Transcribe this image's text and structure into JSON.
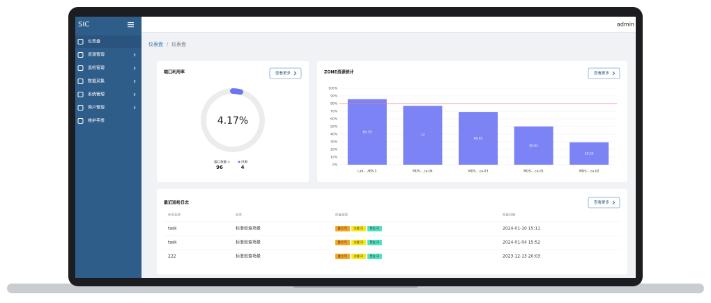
{
  "sidebar": {
    "brand": "SIC",
    "menu": [
      "仪表盘",
      "资源管理",
      "巡检管理",
      "数据采集",
      "系统管理",
      "用户管理",
      "维护手册"
    ]
  },
  "header": {
    "user": "admin"
  },
  "breadcrumb": [
    "仪表盘",
    "/",
    "仪表盘"
  ],
  "port_card": {
    "title": "端口利用率",
    "button": "查看更多",
    "percent": 4.17,
    "percent_label": "4.17%",
    "legend": [
      {
        "name": "端口总数",
        "value": 96
      },
      {
        "name": "已用",
        "value": 4
      }
    ]
  },
  "chart_data": {
    "type": "bar",
    "title": "ZONE资源统计",
    "button": "查看更多",
    "categories": [
      "Lab-...4BS-1",
      "MDS-...ca-04",
      "MDS-...ca-03",
      "MDS-...ca-01",
      "MDS-...ca-02"
    ],
    "values": [
      85.75,
      77,
      69.01,
      50.01,
      29.33
    ],
    "color": "#7b83f5",
    "threshold": 80,
    "threshold_color": "#f08080",
    "ylim": [
      0,
      100
    ],
    "yticks": [
      {
        "value": 0,
        "label": "0%"
      },
      {
        "value": 10,
        "label": "10%"
      },
      {
        "value": 20,
        "label": "20%"
      },
      {
        "value": 30,
        "label": "30%"
      },
      {
        "value": 40,
        "label": "40%"
      },
      {
        "value": 50,
        "label": "50%"
      },
      {
        "value": 60,
        "label": "60%"
      },
      {
        "value": 70,
        "label": "70%"
      },
      {
        "value": 80,
        "label": "80%"
      },
      {
        "value": 90,
        "label": "90%"
      },
      {
        "value": 100,
        "label": "100%"
      }
    ],
    "grid": true
  },
  "log_card": {
    "title": "最近巡检日志",
    "button": "查看更多",
    "columns": [
      "任务名称",
      "任务",
      "检查结果",
      "检查日期"
    ],
    "rows": [
      [
        "task",
        "标准检查场景",
        [
          "重大(5)",
          "次要(3)",
          "警告(3)"
        ],
        "2024-01-10 15:11"
      ],
      [
        "task",
        "标准检查场景",
        [
          "重大(5)",
          "次要(3)",
          "警告(3)"
        ],
        "2024-01-04 15:52"
      ],
      [
        "222",
        "标准检查场景",
        [
          "重大(5)",
          "次要(3)",
          "警告(3)"
        ],
        "2023-12-13 20:03"
      ]
    ]
  }
}
